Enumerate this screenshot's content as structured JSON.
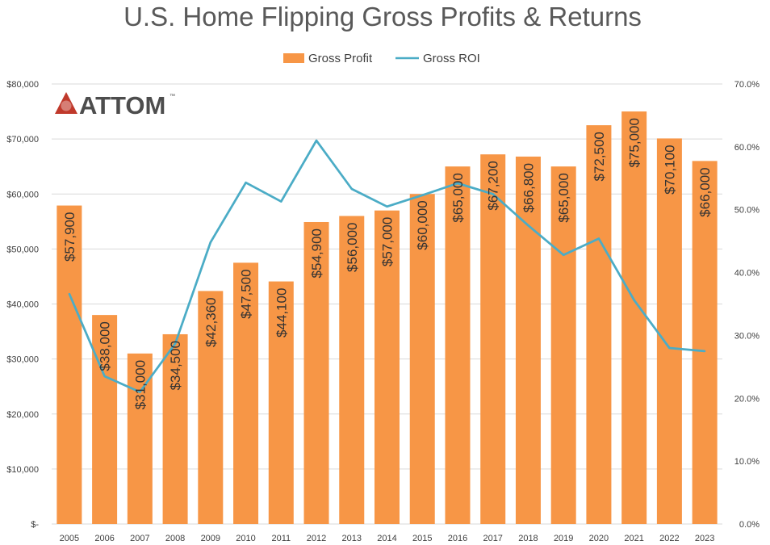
{
  "colors": {
    "bar": "#F79646",
    "line": "#4BACC6",
    "grid": "#D9D9D9",
    "logo_red": "#C0392B"
  },
  "logo": {
    "text": "ATTOM",
    "mark": "™"
  },
  "chart_data": {
    "type": "bar",
    "title": "U.S. Home Flipping Gross Profits & Returns",
    "categories": [
      "2005",
      "2006",
      "2007",
      "2008",
      "2009",
      "2010",
      "2011",
      "2012",
      "2013",
      "2014",
      "2015",
      "2016",
      "2017",
      "2018",
      "2019",
      "2020",
      "2021",
      "2022",
      "2023"
    ],
    "series": [
      {
        "name": "Gross Profit",
        "type": "bar",
        "axis": "left",
        "values": [
          57900,
          38000,
          31000,
          34500,
          42360,
          47500,
          44100,
          54900,
          56000,
          57000,
          60000,
          65000,
          67200,
          66800,
          65000,
          72500,
          75000,
          70100,
          66000
        ],
        "data_labels": [
          "$57,900",
          "$38,000",
          "$31,000",
          "$34,500",
          "$42,360",
          "$47,500",
          "$44,100",
          "$54,900",
          "$56,000",
          "$57,000",
          "$60,000",
          "$65,000",
          "$67,200",
          "$66,800",
          "$65,000",
          "$72,500",
          "$75,000",
          "$70,100",
          "$66,000"
        ]
      },
      {
        "name": "Gross ROI",
        "type": "line",
        "axis": "right",
        "values": [
          36.6,
          23.5,
          21.0,
          28.7,
          44.8,
          54.3,
          51.3,
          61.0,
          53.3,
          50.5,
          52.3,
          54.2,
          52.5,
          47.5,
          42.8,
          45.4,
          35.6,
          28.0,
          27.5
        ]
      }
    ],
    "y_left": {
      "ylim": [
        0,
        80000
      ],
      "ticks": [
        0,
        10000,
        20000,
        30000,
        40000,
        50000,
        60000,
        70000,
        80000
      ],
      "tick_labels": [
        "$-",
        "$10,000",
        "$20,000",
        "$30,000",
        "$40,000",
        "$50,000",
        "$60,000",
        "$70,000",
        "$80,000"
      ]
    },
    "y_right": {
      "ylim": [
        0,
        70
      ],
      "ticks": [
        0,
        10,
        20,
        30,
        40,
        50,
        60,
        70
      ],
      "tick_labels": [
        "0.0%",
        "10.0%",
        "20.0%",
        "30.0%",
        "40.0%",
        "50.0%",
        "60.0%",
        "70.0%"
      ]
    },
    "grid": true,
    "legend_position": "top-center"
  }
}
